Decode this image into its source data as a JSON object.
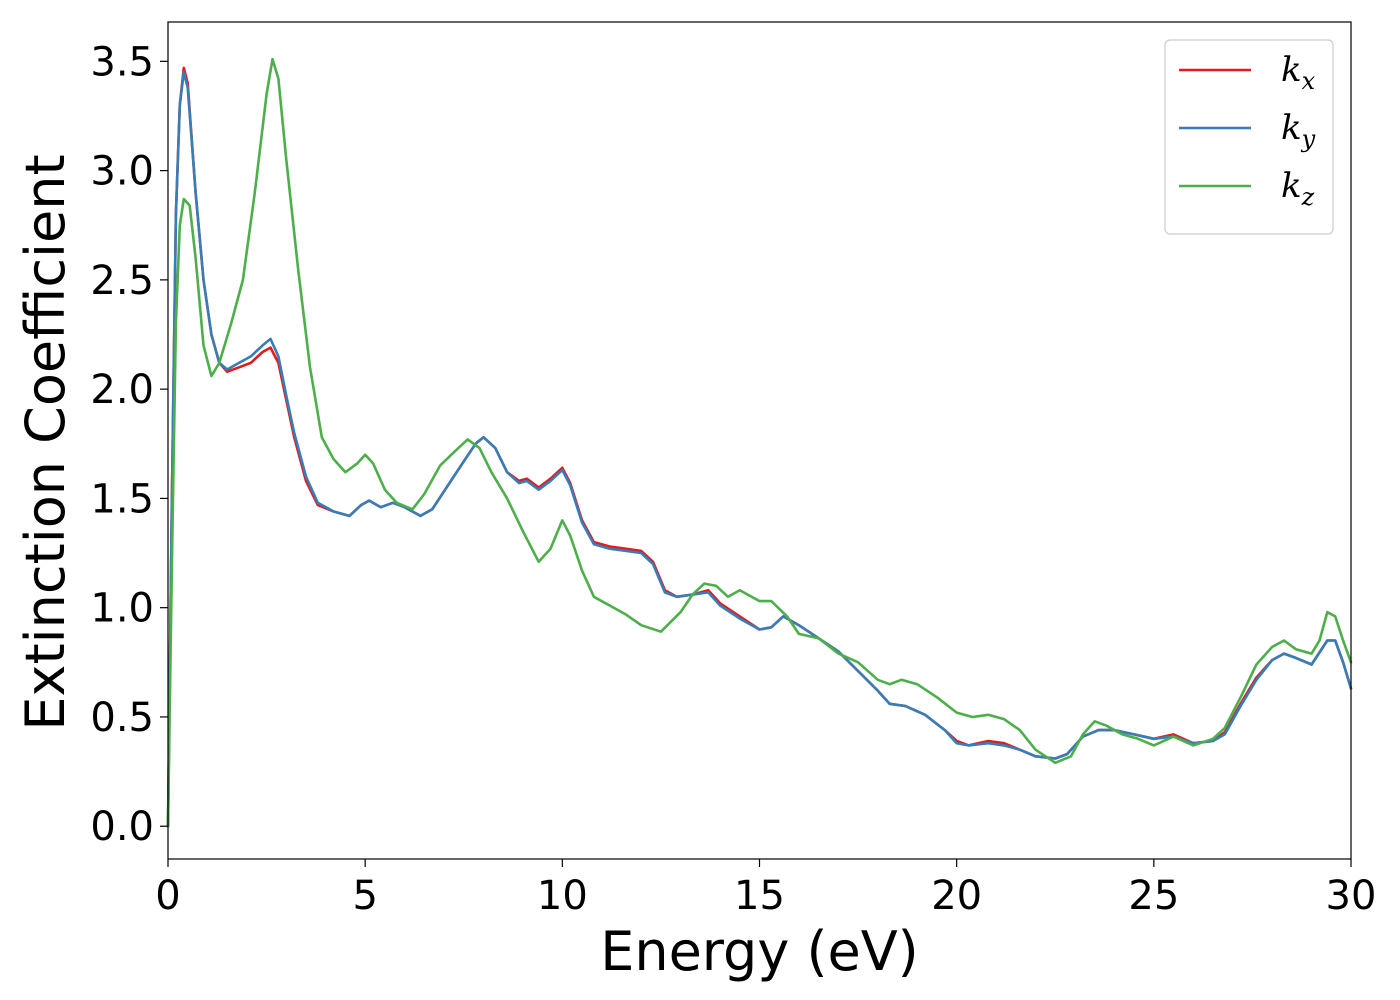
{
  "chart_data": {
    "type": "line",
    "title": "",
    "xlabel": "Energy (eV)",
    "ylabel": "Extinction Coefficient",
    "xlim": [
      0,
      30
    ],
    "ylim": [
      -0.15,
      3.68
    ],
    "xticks": [
      0,
      5,
      10,
      15,
      20,
      25,
      30
    ],
    "xtick_labels": [
      "0",
      "5",
      "10",
      "15",
      "20",
      "25",
      "30"
    ],
    "yticks": [
      0.0,
      0.5,
      1.0,
      1.5,
      2.0,
      2.5,
      3.0,
      3.5
    ],
    "ytick_labels": [
      "0.0",
      "0.5",
      "1.0",
      "1.5",
      "2.0",
      "2.5",
      "3.0",
      "3.5"
    ],
    "grid": false,
    "legend_position": "top-right",
    "series": [
      {
        "name": "k_x",
        "label_base": "k",
        "label_sub": "x",
        "color": "#e41a1c",
        "points": [
          [
            0,
            0.0
          ],
          [
            0.1,
            1.5
          ],
          [
            0.2,
            2.8
          ],
          [
            0.3,
            3.3
          ],
          [
            0.4,
            3.47
          ],
          [
            0.5,
            3.4
          ],
          [
            0.7,
            2.9
          ],
          [
            0.9,
            2.5
          ],
          [
            1.1,
            2.25
          ],
          [
            1.3,
            2.12
          ],
          [
            1.5,
            2.08
          ],
          [
            1.8,
            2.1
          ],
          [
            2.1,
            2.12
          ],
          [
            2.4,
            2.17
          ],
          [
            2.6,
            2.19
          ],
          [
            2.8,
            2.12
          ],
          [
            3.0,
            1.95
          ],
          [
            3.2,
            1.78
          ],
          [
            3.5,
            1.58
          ],
          [
            3.8,
            1.47
          ],
          [
            4.2,
            1.44
          ],
          [
            4.6,
            1.42
          ],
          [
            4.9,
            1.47
          ],
          [
            5.1,
            1.49
          ],
          [
            5.4,
            1.46
          ],
          [
            5.7,
            1.48
          ],
          [
            6.0,
            1.46
          ],
          [
            6.4,
            1.42
          ],
          [
            6.7,
            1.45
          ],
          [
            7.1,
            1.56
          ],
          [
            7.5,
            1.67
          ],
          [
            7.8,
            1.75
          ],
          [
            8.0,
            1.78
          ],
          [
            8.3,
            1.73
          ],
          [
            8.6,
            1.62
          ],
          [
            8.9,
            1.58
          ],
          [
            9.1,
            1.59
          ],
          [
            9.4,
            1.55
          ],
          [
            9.7,
            1.59
          ],
          [
            10.0,
            1.64
          ],
          [
            10.2,
            1.57
          ],
          [
            10.5,
            1.4
          ],
          [
            10.8,
            1.3
          ],
          [
            11.2,
            1.28
          ],
          [
            11.6,
            1.27
          ],
          [
            12.0,
            1.26
          ],
          [
            12.3,
            1.21
          ],
          [
            12.6,
            1.08
          ],
          [
            12.9,
            1.05
          ],
          [
            13.3,
            1.06
          ],
          [
            13.7,
            1.08
          ],
          [
            14.0,
            1.02
          ],
          [
            14.5,
            0.96
          ],
          [
            15.0,
            0.9
          ],
          [
            15.3,
            0.91
          ],
          [
            15.6,
            0.96
          ],
          [
            16.0,
            0.92
          ],
          [
            16.5,
            0.86
          ],
          [
            17.0,
            0.8
          ],
          [
            17.5,
            0.71
          ],
          [
            18.0,
            0.62
          ],
          [
            18.3,
            0.56
          ],
          [
            18.7,
            0.55
          ],
          [
            19.2,
            0.51
          ],
          [
            19.7,
            0.44
          ],
          [
            20.0,
            0.39
          ],
          [
            20.3,
            0.37
          ],
          [
            20.8,
            0.39
          ],
          [
            21.2,
            0.38
          ],
          [
            21.6,
            0.35
          ],
          [
            22.0,
            0.32
          ],
          [
            22.5,
            0.31
          ],
          [
            22.8,
            0.33
          ],
          [
            23.2,
            0.41
          ],
          [
            23.6,
            0.44
          ],
          [
            24.0,
            0.44
          ],
          [
            24.5,
            0.42
          ],
          [
            25.0,
            0.4
          ],
          [
            25.5,
            0.42
          ],
          [
            26.0,
            0.38
          ],
          [
            26.5,
            0.39
          ],
          [
            26.8,
            0.43
          ],
          [
            27.2,
            0.56
          ],
          [
            27.6,
            0.68
          ],
          [
            28.0,
            0.76
          ],
          [
            28.3,
            0.79
          ],
          [
            28.6,
            0.77
          ],
          [
            29.0,
            0.74
          ],
          [
            29.4,
            0.85
          ],
          [
            29.6,
            0.85
          ],
          [
            29.8,
            0.75
          ],
          [
            30.0,
            0.63
          ]
        ]
      },
      {
        "name": "k_y",
        "label_base": "k",
        "label_sub": "y",
        "color": "#377eb8",
        "points": [
          [
            0,
            0.0
          ],
          [
            0.1,
            1.5
          ],
          [
            0.2,
            2.8
          ],
          [
            0.3,
            3.3
          ],
          [
            0.4,
            3.45
          ],
          [
            0.5,
            3.38
          ],
          [
            0.7,
            2.9
          ],
          [
            0.9,
            2.5
          ],
          [
            1.1,
            2.25
          ],
          [
            1.3,
            2.12
          ],
          [
            1.5,
            2.09
          ],
          [
            1.8,
            2.12
          ],
          [
            2.1,
            2.15
          ],
          [
            2.4,
            2.2
          ],
          [
            2.6,
            2.23
          ],
          [
            2.8,
            2.15
          ],
          [
            3.0,
            1.97
          ],
          [
            3.2,
            1.8
          ],
          [
            3.5,
            1.6
          ],
          [
            3.8,
            1.48
          ],
          [
            4.2,
            1.44
          ],
          [
            4.6,
            1.42
          ],
          [
            4.9,
            1.47
          ],
          [
            5.1,
            1.49
          ],
          [
            5.4,
            1.46
          ],
          [
            5.7,
            1.48
          ],
          [
            6.0,
            1.46
          ],
          [
            6.4,
            1.42
          ],
          [
            6.7,
            1.45
          ],
          [
            7.1,
            1.56
          ],
          [
            7.5,
            1.67
          ],
          [
            7.8,
            1.75
          ],
          [
            8.0,
            1.78
          ],
          [
            8.3,
            1.73
          ],
          [
            8.6,
            1.62
          ],
          [
            8.9,
            1.57
          ],
          [
            9.1,
            1.58
          ],
          [
            9.4,
            1.54
          ],
          [
            9.7,
            1.58
          ],
          [
            10.0,
            1.63
          ],
          [
            10.2,
            1.56
          ],
          [
            10.5,
            1.39
          ],
          [
            10.8,
            1.29
          ],
          [
            11.2,
            1.27
          ],
          [
            11.6,
            1.26
          ],
          [
            12.0,
            1.25
          ],
          [
            12.3,
            1.2
          ],
          [
            12.6,
            1.07
          ],
          [
            12.9,
            1.05
          ],
          [
            13.3,
            1.06
          ],
          [
            13.7,
            1.07
          ],
          [
            14.0,
            1.01
          ],
          [
            14.5,
            0.95
          ],
          [
            15.0,
            0.9
          ],
          [
            15.3,
            0.91
          ],
          [
            15.6,
            0.96
          ],
          [
            16.0,
            0.92
          ],
          [
            16.5,
            0.86
          ],
          [
            17.0,
            0.8
          ],
          [
            17.5,
            0.71
          ],
          [
            18.0,
            0.62
          ],
          [
            18.3,
            0.56
          ],
          [
            18.7,
            0.55
          ],
          [
            19.2,
            0.51
          ],
          [
            19.7,
            0.44
          ],
          [
            20.0,
            0.38
          ],
          [
            20.3,
            0.37
          ],
          [
            20.8,
            0.38
          ],
          [
            21.2,
            0.37
          ],
          [
            21.6,
            0.35
          ],
          [
            22.0,
            0.32
          ],
          [
            22.5,
            0.31
          ],
          [
            22.8,
            0.33
          ],
          [
            23.2,
            0.41
          ],
          [
            23.6,
            0.44
          ],
          [
            24.0,
            0.44
          ],
          [
            24.5,
            0.42
          ],
          [
            25.0,
            0.4
          ],
          [
            25.5,
            0.41
          ],
          [
            26.0,
            0.38
          ],
          [
            26.5,
            0.39
          ],
          [
            26.8,
            0.42
          ],
          [
            27.2,
            0.55
          ],
          [
            27.6,
            0.67
          ],
          [
            28.0,
            0.76
          ],
          [
            28.3,
            0.79
          ],
          [
            28.6,
            0.77
          ],
          [
            29.0,
            0.74
          ],
          [
            29.4,
            0.85
          ],
          [
            29.6,
            0.85
          ],
          [
            29.8,
            0.75
          ],
          [
            30.0,
            0.63
          ]
        ]
      },
      {
        "name": "k_z",
        "label_base": "k",
        "label_sub": "z",
        "color": "#4daf4a",
        "points": [
          [
            0,
            0.0
          ],
          [
            0.1,
            1.2
          ],
          [
            0.2,
            2.3
          ],
          [
            0.3,
            2.75
          ],
          [
            0.4,
            2.87
          ],
          [
            0.55,
            2.84
          ],
          [
            0.7,
            2.6
          ],
          [
            0.9,
            2.2
          ],
          [
            1.1,
            2.06
          ],
          [
            1.3,
            2.12
          ],
          [
            1.6,
            2.3
          ],
          [
            1.9,
            2.5
          ],
          [
            2.2,
            2.9
          ],
          [
            2.5,
            3.35
          ],
          [
            2.65,
            3.51
          ],
          [
            2.8,
            3.42
          ],
          [
            3.0,
            3.05
          ],
          [
            3.3,
            2.55
          ],
          [
            3.6,
            2.1
          ],
          [
            3.9,
            1.78
          ],
          [
            4.2,
            1.68
          ],
          [
            4.5,
            1.62
          ],
          [
            4.8,
            1.66
          ],
          [
            5.0,
            1.7
          ],
          [
            5.2,
            1.66
          ],
          [
            5.5,
            1.54
          ],
          [
            5.8,
            1.48
          ],
          [
            6.2,
            1.45
          ],
          [
            6.5,
            1.52
          ],
          [
            6.9,
            1.65
          ],
          [
            7.3,
            1.72
          ],
          [
            7.6,
            1.77
          ],
          [
            7.9,
            1.73
          ],
          [
            8.2,
            1.62
          ],
          [
            8.6,
            1.5
          ],
          [
            9.0,
            1.35
          ],
          [
            9.4,
            1.21
          ],
          [
            9.7,
            1.27
          ],
          [
            10.0,
            1.4
          ],
          [
            10.2,
            1.33
          ],
          [
            10.5,
            1.17
          ],
          [
            10.8,
            1.05
          ],
          [
            11.2,
            1.01
          ],
          [
            11.6,
            0.97
          ],
          [
            12.0,
            0.92
          ],
          [
            12.5,
            0.89
          ],
          [
            13.0,
            0.98
          ],
          [
            13.3,
            1.06
          ],
          [
            13.6,
            1.11
          ],
          [
            13.9,
            1.1
          ],
          [
            14.2,
            1.05
          ],
          [
            14.5,
            1.08
          ],
          [
            14.8,
            1.05
          ],
          [
            15.0,
            1.03
          ],
          [
            15.3,
            1.03
          ],
          [
            15.7,
            0.96
          ],
          [
            16.0,
            0.88
          ],
          [
            16.5,
            0.86
          ],
          [
            17.0,
            0.79
          ],
          [
            17.5,
            0.75
          ],
          [
            18.0,
            0.67
          ],
          [
            18.3,
            0.65
          ],
          [
            18.6,
            0.67
          ],
          [
            19.0,
            0.65
          ],
          [
            19.5,
            0.59
          ],
          [
            20.0,
            0.52
          ],
          [
            20.4,
            0.5
          ],
          [
            20.8,
            0.51
          ],
          [
            21.2,
            0.49
          ],
          [
            21.6,
            0.44
          ],
          [
            22.0,
            0.35
          ],
          [
            22.5,
            0.29
          ],
          [
            22.9,
            0.32
          ],
          [
            23.2,
            0.42
          ],
          [
            23.5,
            0.48
          ],
          [
            23.8,
            0.46
          ],
          [
            24.2,
            0.42
          ],
          [
            24.6,
            0.4
          ],
          [
            25.0,
            0.37
          ],
          [
            25.5,
            0.41
          ],
          [
            26.0,
            0.37
          ],
          [
            26.5,
            0.4
          ],
          [
            26.8,
            0.45
          ],
          [
            27.2,
            0.59
          ],
          [
            27.6,
            0.74
          ],
          [
            28.0,
            0.82
          ],
          [
            28.3,
            0.85
          ],
          [
            28.6,
            0.81
          ],
          [
            29.0,
            0.79
          ],
          [
            29.2,
            0.85
          ],
          [
            29.4,
            0.98
          ],
          [
            29.6,
            0.96
          ],
          [
            29.8,
            0.85
          ],
          [
            30.0,
            0.75
          ]
        ]
      }
    ]
  }
}
